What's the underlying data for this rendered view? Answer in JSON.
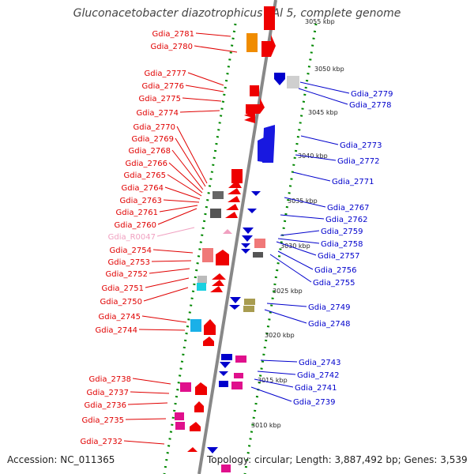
{
  "header": {
    "title": "Gluconacetobacter diazotrophicus PAl 5, complete genome"
  },
  "footer": {
    "accession": "Accession: NC_011365",
    "summary": "Topology: circular; Length: 3,887,492 bp; Genes: 3,539"
  },
  "colors": {
    "left_label": "#e00000",
    "right_label": "#0000cc",
    "rna_label": "#f0a0c0",
    "backbone": "#888888",
    "tick": "#008800"
  },
  "scale_labels": [
    {
      "id": "k3055",
      "text": "3055 kbp"
    },
    {
      "id": "k3050",
      "text": "3050 kbp"
    },
    {
      "id": "k3045",
      "text": "3045 kbp"
    },
    {
      "id": "k3040",
      "text": "3040 kbp"
    },
    {
      "id": "k3035",
      "text": "3035 kbp"
    },
    {
      "id": "k3030",
      "text": "3030 kbp"
    },
    {
      "id": "k3025",
      "text": "3025 kbp"
    },
    {
      "id": "k3020",
      "text": "3020 kbp"
    },
    {
      "id": "k3015",
      "text": "3015 kbp"
    },
    {
      "id": "k3010",
      "text": "3010 kbp"
    }
  ],
  "left_genes": [
    "Gdia_2781",
    "Gdia_2780",
    "Gdia_2777",
    "Gdia_2776",
    "Gdia_2775",
    "Gdia_2774",
    "Gdia_2770",
    "Gdia_2769",
    "Gdia_2768",
    "Gdia_2766",
    "Gdia_2765",
    "Gdia_2764",
    "Gdia_2763",
    "Gdia_2761",
    "Gdia_2760",
    "Gdia_R0047",
    "Gdia_2754",
    "Gdia_2753",
    "Gdia_2752",
    "Gdia_2751",
    "Gdia_2750",
    "Gdia_2745",
    "Gdia_2744",
    "Gdia_2738",
    "Gdia_2737",
    "Gdia_2736",
    "Gdia_2735",
    "Gdia_2732"
  ],
  "right_genes": [
    "Gdia_2779",
    "Gdia_2778",
    "Gdia_2773",
    "Gdia_2772",
    "Gdia_2771",
    "Gdia_2767",
    "Gdia_2762",
    "Gdia_2759",
    "Gdia_2758",
    "Gdia_2757",
    "Gdia_2756",
    "Gdia_2755",
    "Gdia_2749",
    "Gdia_2748",
    "Gdia_2743",
    "Gdia_2742",
    "Gdia_2741",
    "Gdia_2739"
  ]
}
